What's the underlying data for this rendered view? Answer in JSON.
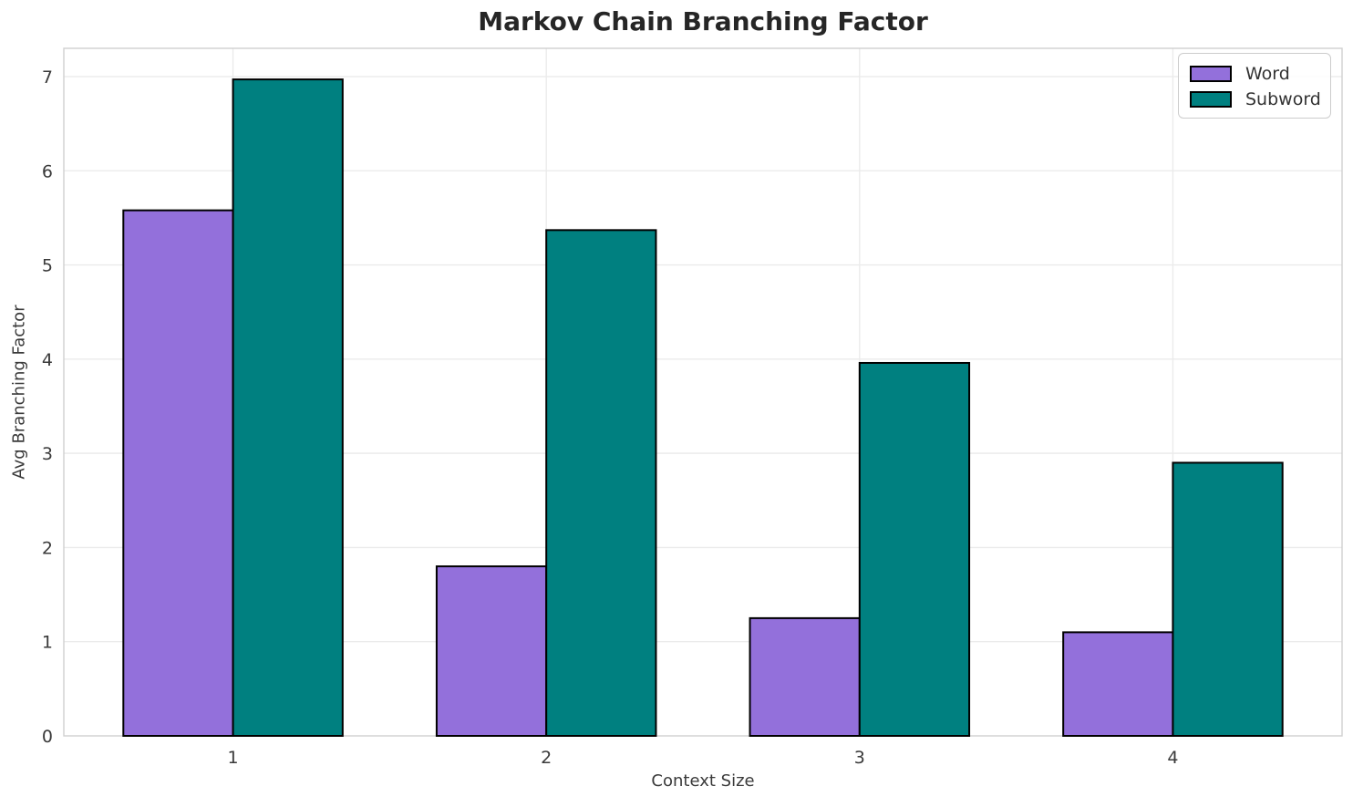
{
  "figure": {
    "title": "Markov Chain Branching Factor",
    "xlabel": "Context Size",
    "ylabel": "Avg Branching Factor"
  },
  "legend": {
    "position": "upper right",
    "items": [
      {
        "label": "Word",
        "color": "#9370DB"
      },
      {
        "label": "Subword",
        "color": "#008080"
      }
    ]
  },
  "chart_data": {
    "type": "bar",
    "title": "Markov Chain Branching Factor",
    "xlabel": "Context Size",
    "ylabel": "Avg Branching Factor",
    "categories": [
      1,
      2,
      3,
      4
    ],
    "series": [
      {
        "name": "Word",
        "color": "#9370DB",
        "values": [
          5.58,
          1.8,
          1.25,
          1.1
        ]
      },
      {
        "name": "Subword",
        "color": "#008080",
        "values": [
          6.97,
          5.37,
          3.96,
          2.9
        ]
      }
    ],
    "bar_width": 0.35,
    "bar_edge_color": "#000000",
    "bar_edge_width": 2,
    "xlim": [
      0.46,
      4.54
    ],
    "ylim": [
      0,
      7.3
    ],
    "yticks": [
      0,
      1,
      2,
      3,
      4,
      5,
      6,
      7
    ],
    "grid": true,
    "legend_position": "upper right",
    "colors": {
      "grid": "#ebebeb",
      "spine": "#d0d0d0",
      "tick_text": "#3a3a3a",
      "title_text": "#262626",
      "background": "#ffffff"
    }
  }
}
